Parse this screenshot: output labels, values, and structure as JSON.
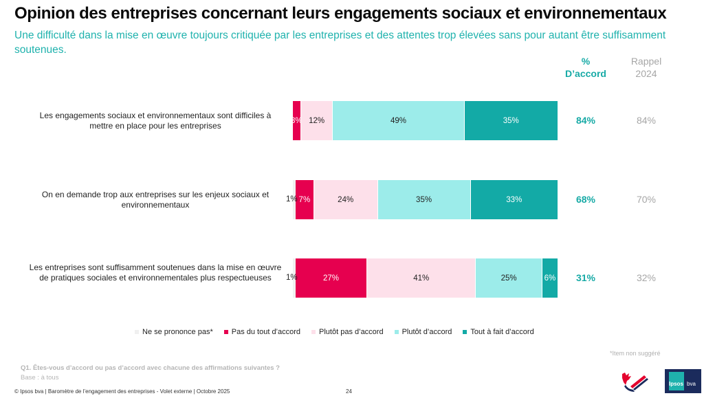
{
  "header": {
    "title": "Opinion des entreprises concernant leurs engagements sociaux et environnementaux",
    "subtitle": "Une difficulté dans la mise en œuvre toujours critiquée par les entreprises et des attentes trop élevées sans pour autant être suffisamment soutenues."
  },
  "columns": {
    "agree_header_line1": "%",
    "agree_header_line2": "D’accord",
    "previous_header_line1": "Rappel",
    "previous_header_line2": "2024"
  },
  "colors": {
    "ne_se_prononce_pas": "#f0f0f0",
    "pas_du_tout": "#e6004f",
    "plutot_pas": "#fde0ea",
    "plutot": "#9cecea",
    "tout_a_fait": "#13aaa6",
    "accent": "#1fb2ad"
  },
  "chart_data": {
    "type": "bar",
    "orientation": "horizontal",
    "stacked": true,
    "title": "Opinion des entreprises concernant leurs engagements sociaux et environnementaux",
    "categories": [
      "Les engagements sociaux et environnementaux sont difficiles à mettre en place pour les entreprises",
      "On en demande trop aux entreprises sur les enjeux sociaux et environnementaux",
      "Les entreprises sont suffisamment soutenues dans la mise en œuvre de pratiques sociales et environnementales plus respectueuses"
    ],
    "series": [
      {
        "name": "Ne se prononce pas*",
        "values": [
          0,
          1,
          1
        ],
        "labels": [
          "",
          "1%",
          "1%"
        ]
      },
      {
        "name": "Pas du tout d’accord",
        "values": [
          3,
          7,
          27
        ],
        "labels": [
          "3%",
          "7%",
          "27%"
        ]
      },
      {
        "name": "Plutôt pas d’accord",
        "values": [
          12,
          24,
          41
        ],
        "labels": [
          "12%",
          "24%",
          "41%"
        ]
      },
      {
        "name": "Plutôt d’accord",
        "values": [
          49,
          35,
          25
        ],
        "labels": [
          "49%",
          "35%",
          "25%"
        ]
      },
      {
        "name": "Tout à fait d’accord",
        "values": [
          35,
          33,
          6
        ],
        "labels": [
          "35%",
          "33%",
          "6%"
        ]
      }
    ],
    "agree_total": [
      "84%",
      "68%",
      "31%"
    ],
    "rappel_2024": [
      "84%",
      "70%",
      "32%"
    ],
    "legend_position": "bottom",
    "xlim": [
      0,
      100
    ],
    "grid": false
  },
  "legend": [
    {
      "label": "Ne se prononce pas*",
      "color_key": "ne_se_prononce_pas"
    },
    {
      "label": "Pas du tout d’accord",
      "color_key": "pas_du_tout"
    },
    {
      "label": "Plutôt pas d’accord",
      "color_key": "plutot_pas"
    },
    {
      "label": "Plutôt d’accord",
      "color_key": "plutot"
    },
    {
      "label": "Tout à fait d’accord",
      "color_key": "tout_a_fait"
    }
  ],
  "footer": {
    "footnote": "*Item non suggéré",
    "question": "Q1. Êtes-vous d’accord ou pas d’accord avec chacune des affirmations suivantes ?",
    "base": "Base : à tous",
    "copyright": "© Ipsos bva | Baromètre de l’engagement des entreprises - Volet externe | Octobre 2025",
    "page_number": "24",
    "logo_ipsos_text": "Ipsos",
    "logo_bva_text": "bva"
  }
}
